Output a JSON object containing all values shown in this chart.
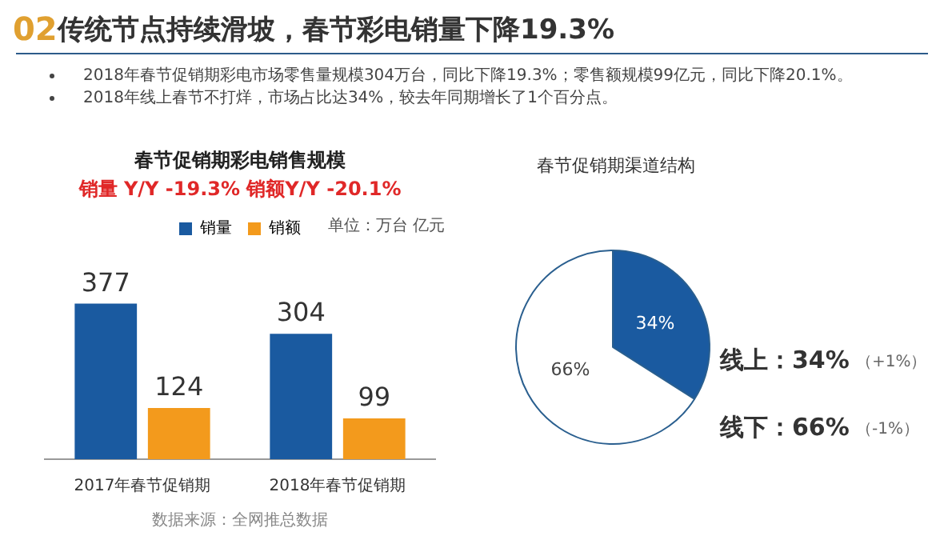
{
  "chart_data": [
    {
      "type": "other",
      "title": "传统节点持续滑坡，春节彩电销量下降19.3%",
      "annotations": [
        "02",
        "2018年春节促销期彩电市场零售量规模304万台，同比下降19.3%；零售额规模99亿元，同比下降20.1%。",
        "2018年线上春节不打烊，市场占比达34%，较去年同期增长了1个百分点。"
      ]
    },
    {
      "type": "bar",
      "title": "春节促销期彩电销售规模",
      "subtitle": "销量 Y/Y -19.3%  销额Y/Y -20.1%",
      "categories": [
        "2017年春节促销期",
        "2018年春节促销期"
      ],
      "series": [
        {
          "name": "销量",
          "color": "#1a5aa0",
          "values": [
            377,
            304
          ]
        },
        {
          "name": "销额",
          "color": "#f39a1c",
          "values": [
            124,
            99
          ]
        }
      ],
      "data_labels": true,
      "legend": "top",
      "annotations": [
        "单位：万台 亿元",
        "数据来源：全网推总数据"
      ]
    },
    {
      "type": "pie",
      "title": "春节促销期渠道结构",
      "categories": [
        "线上",
        "线下"
      ],
      "values": [
        34,
        66
      ],
      "colors": [
        "#1a5aa0",
        "#ffffff"
      ],
      "value_labels": [
        "34%",
        "66%"
      ],
      "annotations": [
        "（+1%）",
        "（-1%）"
      ]
    }
  ]
}
